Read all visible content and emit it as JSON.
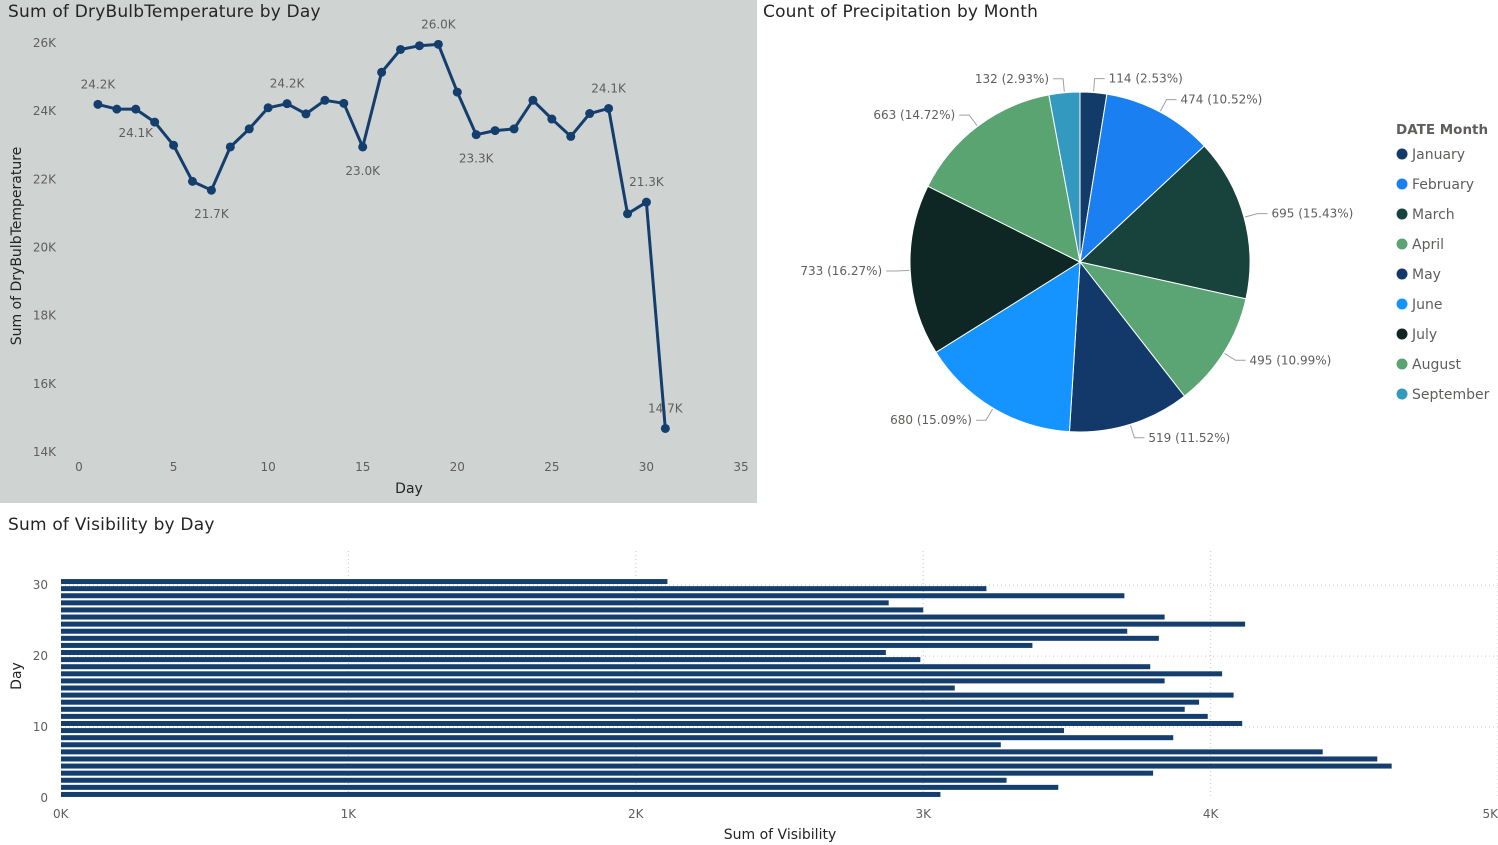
{
  "line_chart": {
    "title": "Sum of DryBulbTemperature by Day",
    "colors": {
      "background": "#cfd4d2",
      "line": "#143e6e"
    }
  },
  "pie_chart": {
    "title": "Count of Precipitation by Month",
    "legend_title": "DATE Month"
  },
  "bar_chart": {
    "title": "Sum of Visibility by Day",
    "colors": {
      "bar": "#143e6e"
    }
  },
  "chart_data": [
    {
      "type": "line",
      "title": "Sum of DryBulbTemperature by Day",
      "xlabel": "Day",
      "ylabel": "Sum of DryBulbTemperature",
      "xlim": [
        0,
        35
      ],
      "ylim": [
        14000,
        26000
      ],
      "xticks": [
        0,
        5,
        10,
        15,
        20,
        25,
        30,
        35
      ],
      "xtick_labels": [
        "0",
        "5",
        "10",
        "15",
        "20",
        "25",
        "30",
        "35"
      ],
      "yticks": [
        14000,
        16000,
        18000,
        20000,
        22000,
        24000,
        26000
      ],
      "ytick_labels": [
        "14K",
        "16K",
        "18K",
        "20K",
        "22K",
        "24K",
        "26K"
      ],
      "grid": false,
      "x": [
        1,
        2,
        3,
        4,
        5,
        6,
        7,
        8,
        9,
        10,
        11,
        12,
        13,
        14,
        15,
        16,
        17,
        18,
        19,
        20,
        21,
        22,
        23,
        24,
        25,
        26,
        27,
        28,
        29,
        30,
        31
      ],
      "y": [
        24200,
        24060,
        24060,
        23680,
        23000,
        21940,
        21680,
        22950,
        23480,
        24100,
        24220,
        23920,
        24320,
        24230,
        22950,
        25140,
        25810,
        25920,
        25960,
        24560,
        23310,
        23430,
        23480,
        24320,
        23770,
        23260,
        23930,
        24080,
        20990,
        21330,
        14690
      ],
      "data_labels": [
        {
          "x": 1,
          "text": "24.2K"
        },
        {
          "x": 3,
          "text": "24.1K"
        },
        {
          "x": 7,
          "text": "21.7K"
        },
        {
          "x": 11,
          "text": "24.2K"
        },
        {
          "x": 15,
          "text": "23.0K"
        },
        {
          "x": 19,
          "text": "26.0K"
        },
        {
          "x": 21,
          "text": "23.3K"
        },
        {
          "x": 28,
          "text": "24.1K"
        },
        {
          "x": 30,
          "text": "21.3K"
        },
        {
          "x": 31,
          "text": "14.7K"
        }
      ]
    },
    {
      "type": "pie",
      "title": "Count of Precipitation by Month",
      "legend_title": "DATE Month",
      "legend_position": "right",
      "slices": [
        {
          "name": "January",
          "value": 114,
          "label": "114 (2.53%)",
          "color": "#133b6a"
        },
        {
          "name": "February",
          "value": 474,
          "label": "474 (10.52%)",
          "color": "#1a80f2"
        },
        {
          "name": "March",
          "value": 695,
          "label": "695 (15.43%)",
          "color": "#18423c"
        },
        {
          "name": "April",
          "value": 495,
          "label": "495 (10.99%)",
          "color": "#5ba474"
        },
        {
          "name": "May",
          "value": 519,
          "label": "519 (11.52%)",
          "color": "#12396a"
        },
        {
          "name": "June",
          "value": 680,
          "label": "680 (15.09%)",
          "color": "#1593ff"
        },
        {
          "name": "July",
          "value": 733,
          "label": "733 (16.27%)",
          "color": "#0e2725"
        },
        {
          "name": "August",
          "value": 663,
          "label": "663 (14.72%)",
          "color": "#5aa472"
        },
        {
          "name": "September",
          "value": 132,
          "label": "132 (2.93%)",
          "color": "#3499bf"
        }
      ]
    },
    {
      "type": "bar",
      "orientation": "horizontal",
      "title": "Sum of Visibility by Day",
      "xlabel": "Sum of Visibility",
      "ylabel": "Day",
      "xlim": [
        0,
        5000
      ],
      "ylim": [
        0,
        31
      ],
      "xticks": [
        0,
        1000,
        2000,
        3000,
        4000,
        5000
      ],
      "xtick_labels": [
        "0K",
        "1K",
        "2K",
        "3K",
        "4K",
        "5K"
      ],
      "yticks": [
        0,
        10,
        20,
        30
      ],
      "ytick_labels": [
        "0",
        "10",
        "20",
        "30"
      ],
      "grid": true,
      "categories": [
        1,
        2,
        3,
        4,
        5,
        6,
        7,
        8,
        9,
        10,
        11,
        12,
        13,
        14,
        15,
        16,
        17,
        18,
        19,
        20,
        21,
        22,
        23,
        24,
        25,
        26,
        27,
        28,
        29,
        30,
        31
      ],
      "values": [
        3060,
        3470,
        3290,
        3800,
        4630,
        4580,
        4390,
        3270,
        3870,
        3490,
        4110,
        3990,
        3910,
        3960,
        4080,
        3110,
        3840,
        4040,
        3790,
        2990,
        2870,
        3380,
        3820,
        3710,
        4120,
        3840,
        3000,
        2880,
        3700,
        3220,
        2110
      ]
    }
  ]
}
